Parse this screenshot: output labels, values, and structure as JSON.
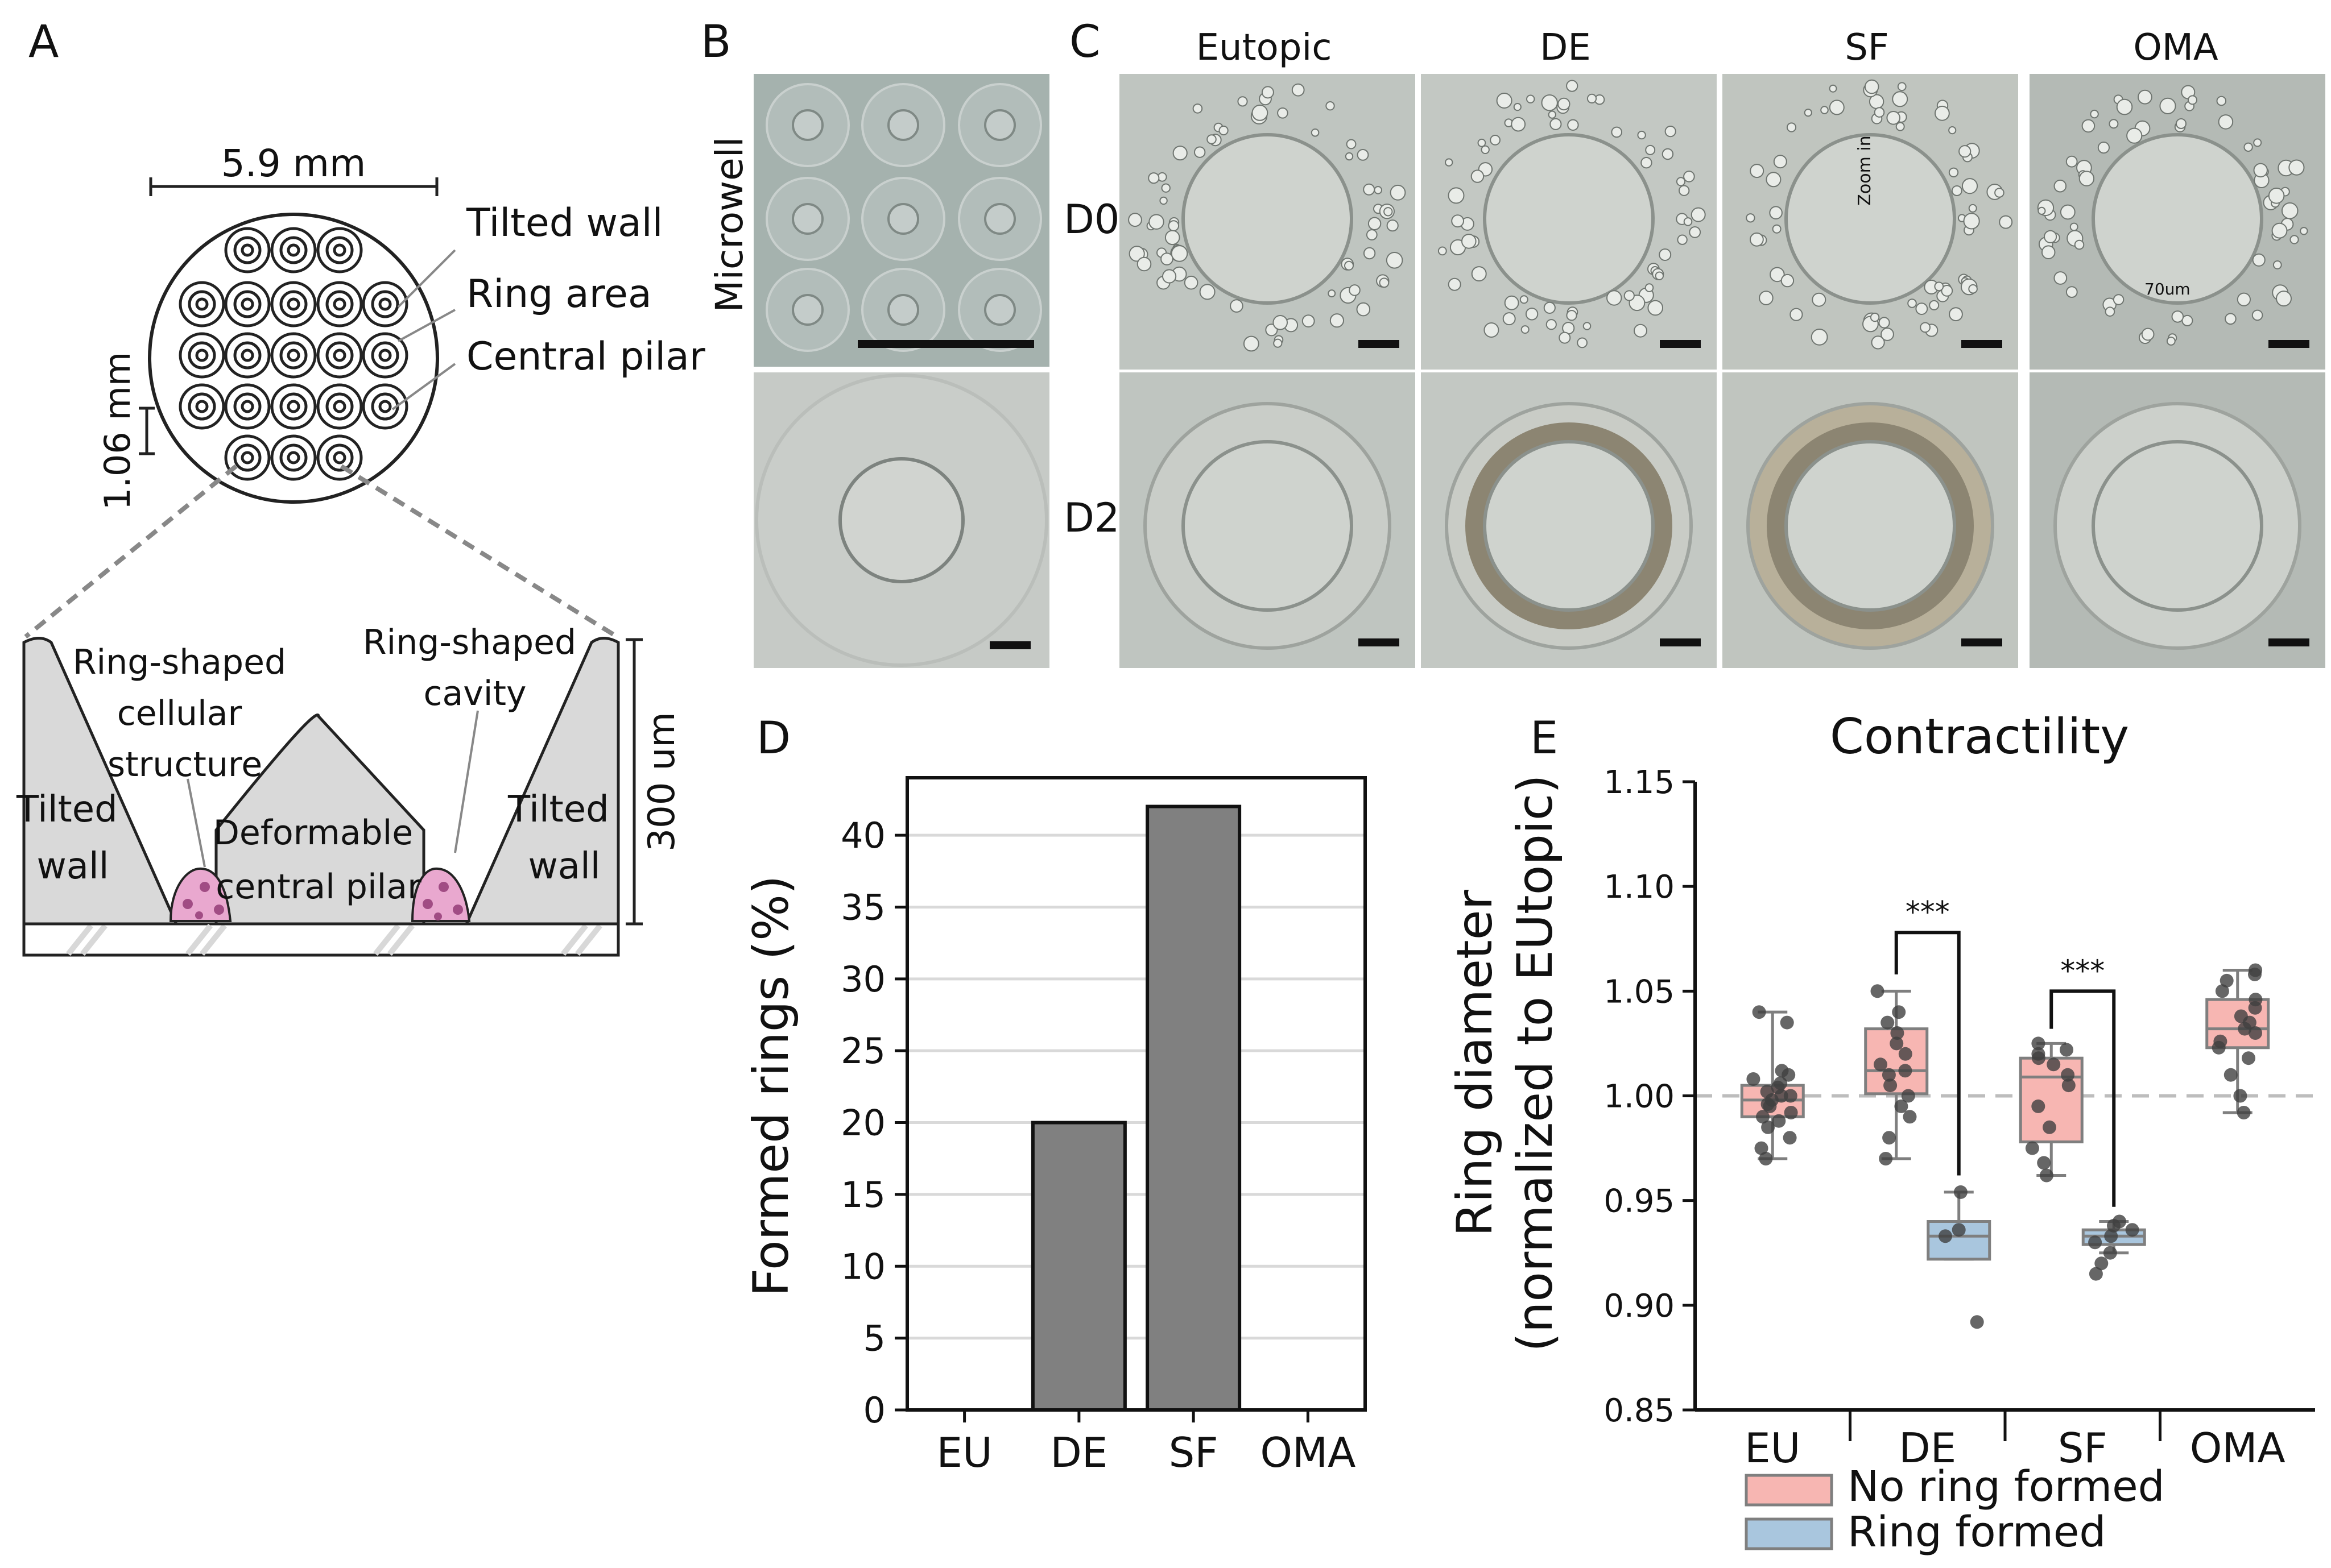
{
  "panels": {
    "a": {
      "letter": "A",
      "width_label": "5.9 mm",
      "spacing_label": "1.06 mm",
      "callouts": [
        "Tilted wall",
        "Ring area",
        "Central pilar"
      ],
      "cross_section": {
        "ring_structure_lines": [
          "Ring-shaped",
          "cellular",
          "structure"
        ],
        "cavity_lines": [
          "Ring-shaped",
          "cavity"
        ],
        "left_wall_lines": [
          "Tilted",
          "wall"
        ],
        "right_wall_lines": [
          "Tilted",
          "wall"
        ],
        "pilar_lines": [
          "Deformable",
          "central pilar"
        ],
        "height_label": "300 um"
      },
      "colors": {
        "wall_fill": "#d9d9d9",
        "cell_fill": "#e9a8cf"
      }
    },
    "b": {
      "letter": "B",
      "row_label": "Microwell"
    },
    "c": {
      "letter": "C",
      "columns": [
        "Eutopic",
        "DE",
        "SF",
        "OMA"
      ],
      "rows": [
        "D0",
        "D2"
      ],
      "annotations": {
        "zoom": "Zoom in",
        "scale": "70um"
      }
    },
    "d": {
      "letter": "D"
    },
    "e": {
      "letter": "E"
    }
  },
  "chart_data": [
    {
      "type": "bar",
      "panel": "D",
      "title": "",
      "categories": [
        "EU",
        "DE",
        "SF",
        "OMA"
      ],
      "values": [
        0,
        20,
        42,
        0
      ],
      "xlabel": "",
      "ylabel": "Formed rings (%)",
      "ylim": [
        0,
        44
      ],
      "yticks": [
        0,
        5,
        10,
        15,
        20,
        25,
        30,
        35,
        40
      ],
      "grid": "horizontal",
      "colors": {
        "bar": "#808080",
        "grid": "#d9d9d9"
      }
    },
    {
      "type": "box",
      "panel": "E",
      "title": "Contractility",
      "categories": [
        "EU",
        "DE",
        "SF",
        "OMA"
      ],
      "ylabel_lines": [
        "Ring diameter",
        "(normalized to EUtopic)"
      ],
      "ylim": [
        0.85,
        1.15
      ],
      "yticks": [
        "0.85",
        "0.90",
        "0.95",
        "1.00",
        "1.05",
        "1.10",
        "1.15"
      ],
      "reference_line": 1.0,
      "legend": {
        "placement": "bottom",
        "entries": [
          "No ring formed",
          "Ring formed"
        ]
      },
      "colors": {
        "no_ring": "#f7b6b2",
        "ring": "#a9c6de",
        "whisker": "#7f7f7f",
        "point": "#404040"
      },
      "series": [
        {
          "name": "No ring formed",
          "boxes": [
            {
              "category": "EU",
              "min": 0.97,
              "q1": 0.99,
              "median": 0.998,
              "q3": 1.005,
              "max": 1.04,
              "points": [
                0.97,
                0.975,
                0.98,
                0.985,
                0.988,
                0.99,
                0.992,
                0.995,
                0.996,
                0.998,
                1.0,
                1.0,
                1.002,
                1.004,
                1.006,
                1.008,
                1.01,
                1.012,
                1.035,
                1.04
              ]
            },
            {
              "category": "DE",
              "min": 0.97,
              "q1": 1.001,
              "median": 1.012,
              "q3": 1.032,
              "max": 1.05,
              "points": [
                0.97,
                0.98,
                0.99,
                0.995,
                1.0,
                1.005,
                1.01,
                1.012,
                1.015,
                1.02,
                1.025,
                1.03,
                1.035,
                1.04,
                1.05
              ]
            },
            {
              "category": "SF",
              "min": 0.962,
              "q1": 0.978,
              "median": 1.009,
              "q3": 1.018,
              "max": 1.025,
              "points": [
                0.962,
                0.968,
                0.975,
                0.985,
                0.995,
                1.005,
                1.01,
                1.015,
                1.018,
                1.02,
                1.022,
                1.025
              ]
            },
            {
              "category": "OMA",
              "min": 0.992,
              "q1": 1.023,
              "median": 1.032,
              "q3": 1.046,
              "max": 1.06,
              "points": [
                0.992,
                1.0,
                1.01,
                1.018,
                1.023,
                1.026,
                1.03,
                1.032,
                1.035,
                1.038,
                1.042,
                1.046,
                1.05,
                1.055,
                1.058,
                1.06
              ]
            }
          ]
        },
        {
          "name": "Ring formed",
          "boxes": [
            {
              "category": "DE",
              "min": 0.922,
              "q1": 0.922,
              "median": 0.933,
              "q3": 0.94,
              "max": 0.954,
              "points": [
                0.892,
                0.933,
                0.936,
                0.954
              ]
            },
            {
              "category": "SF",
              "min": 0.925,
              "q1": 0.929,
              "median": 0.933,
              "q3": 0.936,
              "max": 0.94,
              "points": [
                0.915,
                0.92,
                0.925,
                0.93,
                0.933,
                0.936,
                0.938,
                0.94
              ]
            }
          ]
        }
      ],
      "significance": [
        {
          "category": "DE",
          "label": "***"
        },
        {
          "category": "SF",
          "label": "***"
        }
      ]
    }
  ]
}
